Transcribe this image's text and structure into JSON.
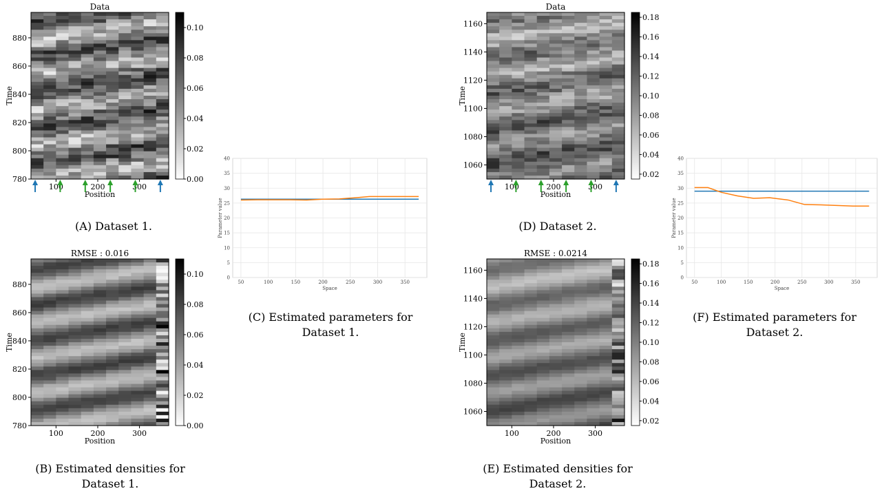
{
  "captions": {
    "a": "(A) Dataset 1.",
    "b_line1": "(B) Estimated densities for",
    "b_line2": "Dataset 1.",
    "c_line1": "(C) Estimated parameters for",
    "c_line2": "Dataset 1.",
    "d": "(D) Dataset 2.",
    "e_line1": "(E) Estimated densities for",
    "e_line2": "Dataset 2.",
    "f_line1": "(F) Estimated parameters for",
    "f_line2": "Dataset 2."
  },
  "colors": {
    "series_blue": "#1f77b4",
    "series_orange": "#ff7f0e",
    "arrow_blue": "#1f77b4",
    "arrow_green": "#2ca02c"
  },
  "chart_data": [
    {
      "id": "A",
      "type": "heatmap",
      "title": "Data",
      "xlabel": "Position",
      "ylabel": "Time",
      "xlim": [
        40,
        370
      ],
      "ylim": [
        780,
        898
      ],
      "xticks": [
        100,
        200,
        300
      ],
      "yticks": [
        780,
        800,
        820,
        840,
        860,
        880
      ],
      "colorbar": {
        "min": 0.0,
        "max": 0.11,
        "ticks": [
          "0.00",
          "0.02",
          "0.04",
          "0.06",
          "0.08",
          "0.10"
        ]
      },
      "sensor_arrows": [
        {
          "x": 50,
          "color": "blue"
        },
        {
          "x": 110,
          "color": "green"
        },
        {
          "x": 170,
          "color": "green"
        },
        {
          "x": 230,
          "color": "green"
        },
        {
          "x": 290,
          "color": "green"
        },
        {
          "x": 350,
          "color": "blue"
        }
      ]
    },
    {
      "id": "B",
      "type": "heatmap",
      "title": "RMSE : 0.016",
      "xlabel": "Position",
      "ylabel": "Time",
      "xlim": [
        40,
        370
      ],
      "ylim": [
        780,
        898
      ],
      "xticks": [
        100,
        200,
        300
      ],
      "yticks": [
        780,
        800,
        820,
        840,
        860,
        880
      ],
      "colorbar": {
        "min": 0.0,
        "max": 0.11,
        "ticks": [
          "0.00",
          "0.02",
          "0.04",
          "0.06",
          "0.08",
          "0.10"
        ]
      }
    },
    {
      "id": "C",
      "type": "line",
      "xlabel": "Space",
      "ylabel": "Parameter value",
      "xlim": [
        35,
        390
      ],
      "ylim": [
        0,
        40
      ],
      "xticks": [
        50,
        100,
        150,
        200,
        250,
        300,
        350
      ],
      "yticks": [
        0,
        5,
        10,
        15,
        20,
        25,
        30,
        35,
        40
      ],
      "grid": true,
      "series": [
        {
          "color": "blue",
          "x": [
            50,
            375
          ],
          "y": [
            26.3,
            26.3
          ]
        },
        {
          "color": "orange",
          "x": [
            50,
            80,
            110,
            140,
            170,
            200,
            230,
            260,
            285,
            315,
            345,
            375
          ],
          "y": [
            26.0,
            26.1,
            26.1,
            26.1,
            26.0,
            26.3,
            26.4,
            26.8,
            27.2,
            27.2,
            27.2,
            27.2
          ]
        }
      ]
    },
    {
      "id": "D",
      "type": "heatmap",
      "title": "Data",
      "xlabel": "Position",
      "ylabel": "Time",
      "xlim": [
        40,
        370
      ],
      "ylim": [
        1050,
        1168
      ],
      "xticks": [
        100,
        200,
        300
      ],
      "yticks": [
        1060,
        1080,
        1100,
        1120,
        1140,
        1160
      ],
      "colorbar": {
        "min": 0.015,
        "max": 0.185,
        "ticks": [
          "0.02",
          "0.04",
          "0.06",
          "0.08",
          "0.10",
          "0.12",
          "0.14",
          "0.16",
          "0.18"
        ]
      },
      "sensor_arrows": [
        {
          "x": 50,
          "color": "blue"
        },
        {
          "x": 110,
          "color": "green"
        },
        {
          "x": 170,
          "color": "green"
        },
        {
          "x": 230,
          "color": "green"
        },
        {
          "x": 290,
          "color": "green"
        },
        {
          "x": 350,
          "color": "blue"
        }
      ]
    },
    {
      "id": "E",
      "type": "heatmap",
      "title": "RMSE : 0.0214",
      "xlabel": "Position",
      "ylabel": "Time",
      "xlim": [
        40,
        370
      ],
      "ylim": [
        1050,
        1168
      ],
      "xticks": [
        100,
        200,
        300
      ],
      "yticks": [
        1060,
        1080,
        1100,
        1120,
        1140,
        1160
      ],
      "colorbar": {
        "min": 0.015,
        "max": 0.185,
        "ticks": [
          "0.02",
          "0.04",
          "0.06",
          "0.08",
          "0.10",
          "0.12",
          "0.14",
          "0.16",
          "0.18"
        ]
      }
    },
    {
      "id": "F",
      "type": "line",
      "xlabel": "Space",
      "ylabel": "Parameter value",
      "xlim": [
        35,
        390
      ],
      "ylim": [
        0,
        40
      ],
      "xticks": [
        50,
        100,
        150,
        200,
        250,
        300,
        350
      ],
      "yticks": [
        0,
        5,
        10,
        15,
        20,
        25,
        30,
        35,
        40
      ],
      "grid": true,
      "series": [
        {
          "color": "blue",
          "x": [
            50,
            375
          ],
          "y": [
            29.0,
            29.0
          ]
        },
        {
          "color": "orange",
          "x": [
            50,
            75,
            100,
            130,
            160,
            190,
            225,
            255,
            285,
            315,
            345,
            375
          ],
          "y": [
            30.2,
            30.2,
            28.6,
            27.4,
            26.6,
            26.8,
            26.0,
            24.5,
            24.4,
            24.2,
            24.0,
            24.0
          ]
        }
      ]
    }
  ]
}
